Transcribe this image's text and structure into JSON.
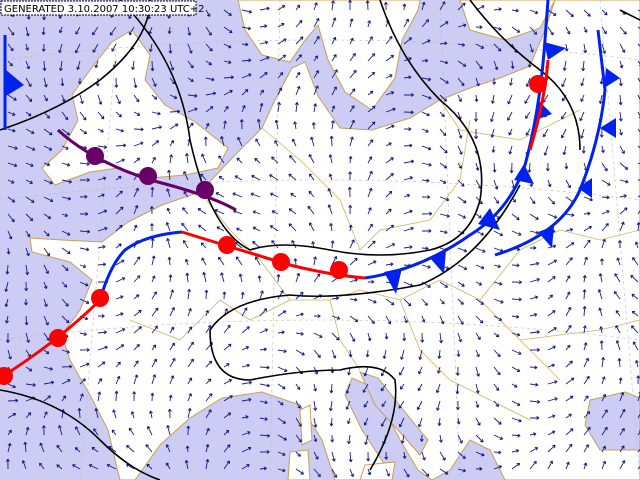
{
  "header": {
    "timestamp": "GENERATED 3.10.2007 10:30:23 UTC+2"
  }
}
